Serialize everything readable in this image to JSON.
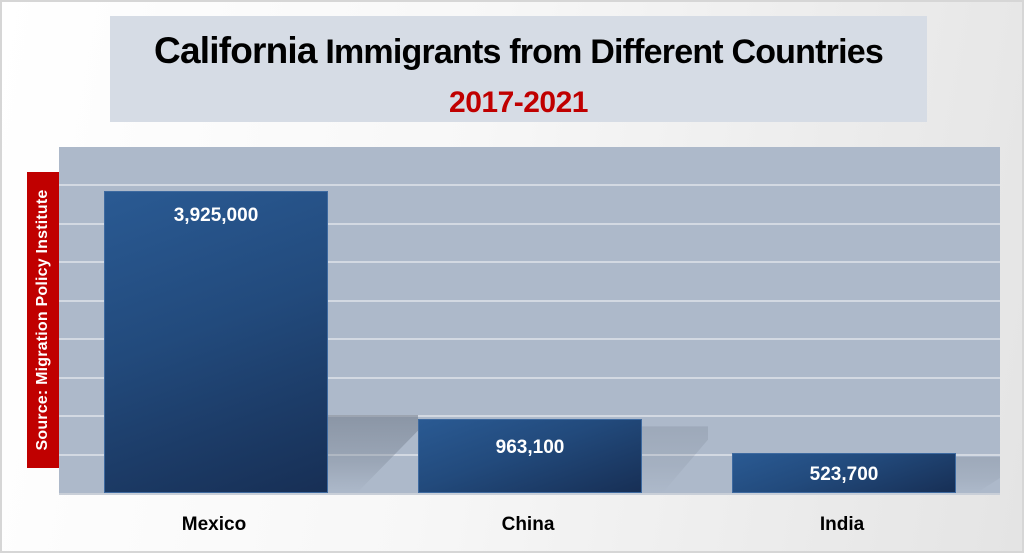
{
  "title": {
    "state": "California",
    "rest": " Immigrants from Different Countries",
    "subtitle": "2017-2021"
  },
  "source": "Source: Migration Policy Institute",
  "colors": {
    "title_box_bg": "#d6dce5",
    "subtitle": "#c00000",
    "source_box_bg": "#c00000",
    "plot_bg": "#adb9ca",
    "bar_fill": "#224a7c"
  },
  "bars": [
    {
      "category": "Mexico",
      "value_label": "3,925,000"
    },
    {
      "category": "China",
      "value_label": "963,100"
    },
    {
      "category": "India",
      "value_label": "523,700"
    }
  ],
  "chart_data": {
    "type": "bar",
    "title": "California Immigrants from Different Countries",
    "subtitle": "2017-2021",
    "categories": [
      "Mexico",
      "China",
      "India"
    ],
    "values": [
      3925000,
      963100,
      523700
    ],
    "data_labels": [
      "3,925,000",
      "963,100",
      "523,700"
    ],
    "xlabel": "",
    "ylabel": "",
    "ylim": [
      0,
      4500000
    ],
    "y_gridline_step": 500000,
    "y_axis_tick_labels_visible": false,
    "grid": true,
    "legend": "none",
    "annotation": "Source: Migration Policy Institute"
  }
}
